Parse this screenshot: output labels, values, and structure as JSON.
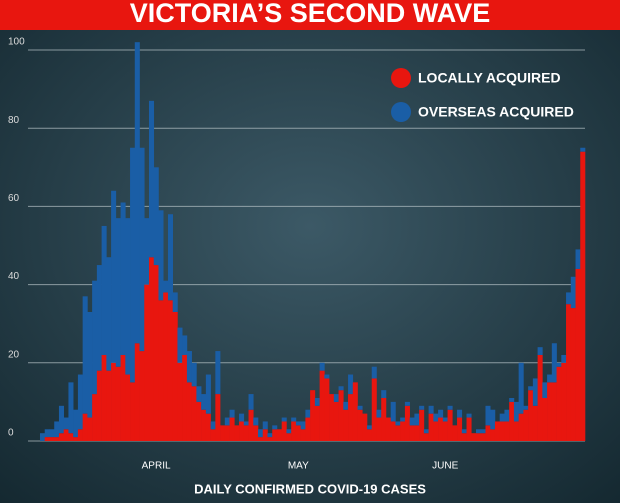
{
  "chart_data": {
    "type": "bar",
    "stacked": true,
    "title": "VICTORIA’S SECOND WAVE",
    "x_label": "DAILY CONFIRMED COVID-19 CASES",
    "categories": [
      null,
      null,
      null,
      null,
      null,
      null,
      null,
      null,
      null,
      null,
      null,
      null,
      null,
      null,
      null,
      null,
      null,
      null,
      null,
      null,
      null,
      null,
      null,
      null,
      "APRIL",
      null,
      null,
      null,
      null,
      null,
      null,
      null,
      null,
      null,
      null,
      null,
      null,
      null,
      null,
      null,
      null,
      null,
      null,
      null,
      null,
      null,
      null,
      null,
      null,
      null,
      null,
      null,
      null,
      null,
      "MAY",
      null,
      null,
      null,
      null,
      null,
      null,
      null,
      null,
      null,
      null,
      null,
      null,
      null,
      null,
      null,
      null,
      null,
      null,
      null,
      null,
      null,
      null,
      null,
      null,
      null,
      null,
      null,
      null,
      null,
      null,
      "JUNE",
      null,
      null,
      null,
      null,
      null,
      null,
      null,
      null,
      null,
      null,
      null,
      null,
      null,
      null,
      null,
      null,
      null,
      null,
      null,
      null,
      null,
      null,
      null,
      null,
      null,
      null,
      null,
      null,
      null
    ],
    "series": [
      {
        "name": "LOCALLY ACQUIRED",
        "color": "#e8160f",
        "values": [
          0,
          1,
          1,
          1,
          2,
          3,
          2,
          1,
          3,
          7,
          6,
          12,
          18,
          22,
          18,
          20,
          19,
          22,
          17,
          15,
          25,
          23,
          40,
          47,
          45,
          36,
          38,
          36,
          33,
          20,
          22,
          15,
          14,
          10,
          8,
          7,
          3,
          12,
          4,
          4,
          6,
          4,
          5,
          4,
          8,
          4,
          1,
          3,
          1,
          3,
          3,
          5,
          2,
          5,
          4,
          3,
          6,
          13,
          9,
          18,
          16,
          12,
          10,
          13,
          8,
          12,
          15,
          8,
          7,
          3,
          16,
          6,
          11,
          6,
          5,
          4,
          5,
          9,
          4,
          4,
          8,
          2,
          7,
          5,
          6,
          5,
          8,
          4,
          6,
          2,
          6,
          2,
          2,
          2,
          4,
          3,
          5,
          5,
          5,
          10,
          5,
          7,
          8,
          13,
          9,
          22,
          11,
          15,
          15,
          19,
          20,
          35,
          34,
          44,
          74
        ]
      },
      {
        "name": "OVERSEAS ACQUIRED",
        "color": "#1a5ea6",
        "values": [
          2,
          2,
          2,
          4,
          7,
          3,
          13,
          7,
          14,
          30,
          27,
          29,
          27,
          33,
          29,
          44,
          38,
          39,
          40,
          60,
          77,
          52,
          17,
          40,
          25,
          23,
          3,
          22,
          5,
          9,
          5,
          8,
          6,
          4,
          4,
          10,
          2,
          11,
          0,
          2,
          2,
          0,
          2,
          1,
          4,
          2,
          2,
          2,
          1,
          1,
          0,
          1,
          1,
          1,
          1,
          2,
          2,
          0,
          2,
          2,
          1,
          0,
          2,
          1,
          2,
          5,
          0,
          1,
          0,
          1,
          3,
          2,
          2,
          0,
          5,
          1,
          1,
          1,
          2,
          3,
          1,
          1,
          2,
          2,
          2,
          1,
          1,
          0,
          2,
          1,
          1,
          0,
          1,
          1,
          5,
          5,
          0,
          2,
          3,
          1,
          5,
          13,
          1,
          1,
          7,
          2,
          4,
          2,
          10,
          1,
          2,
          3,
          8,
          5,
          1
        ]
      }
    ],
    "ylim": [
      0,
      100
    ],
    "yticks": [
      0,
      20,
      40,
      60,
      80,
      100
    ],
    "grid": true,
    "legend": "top-right"
  }
}
